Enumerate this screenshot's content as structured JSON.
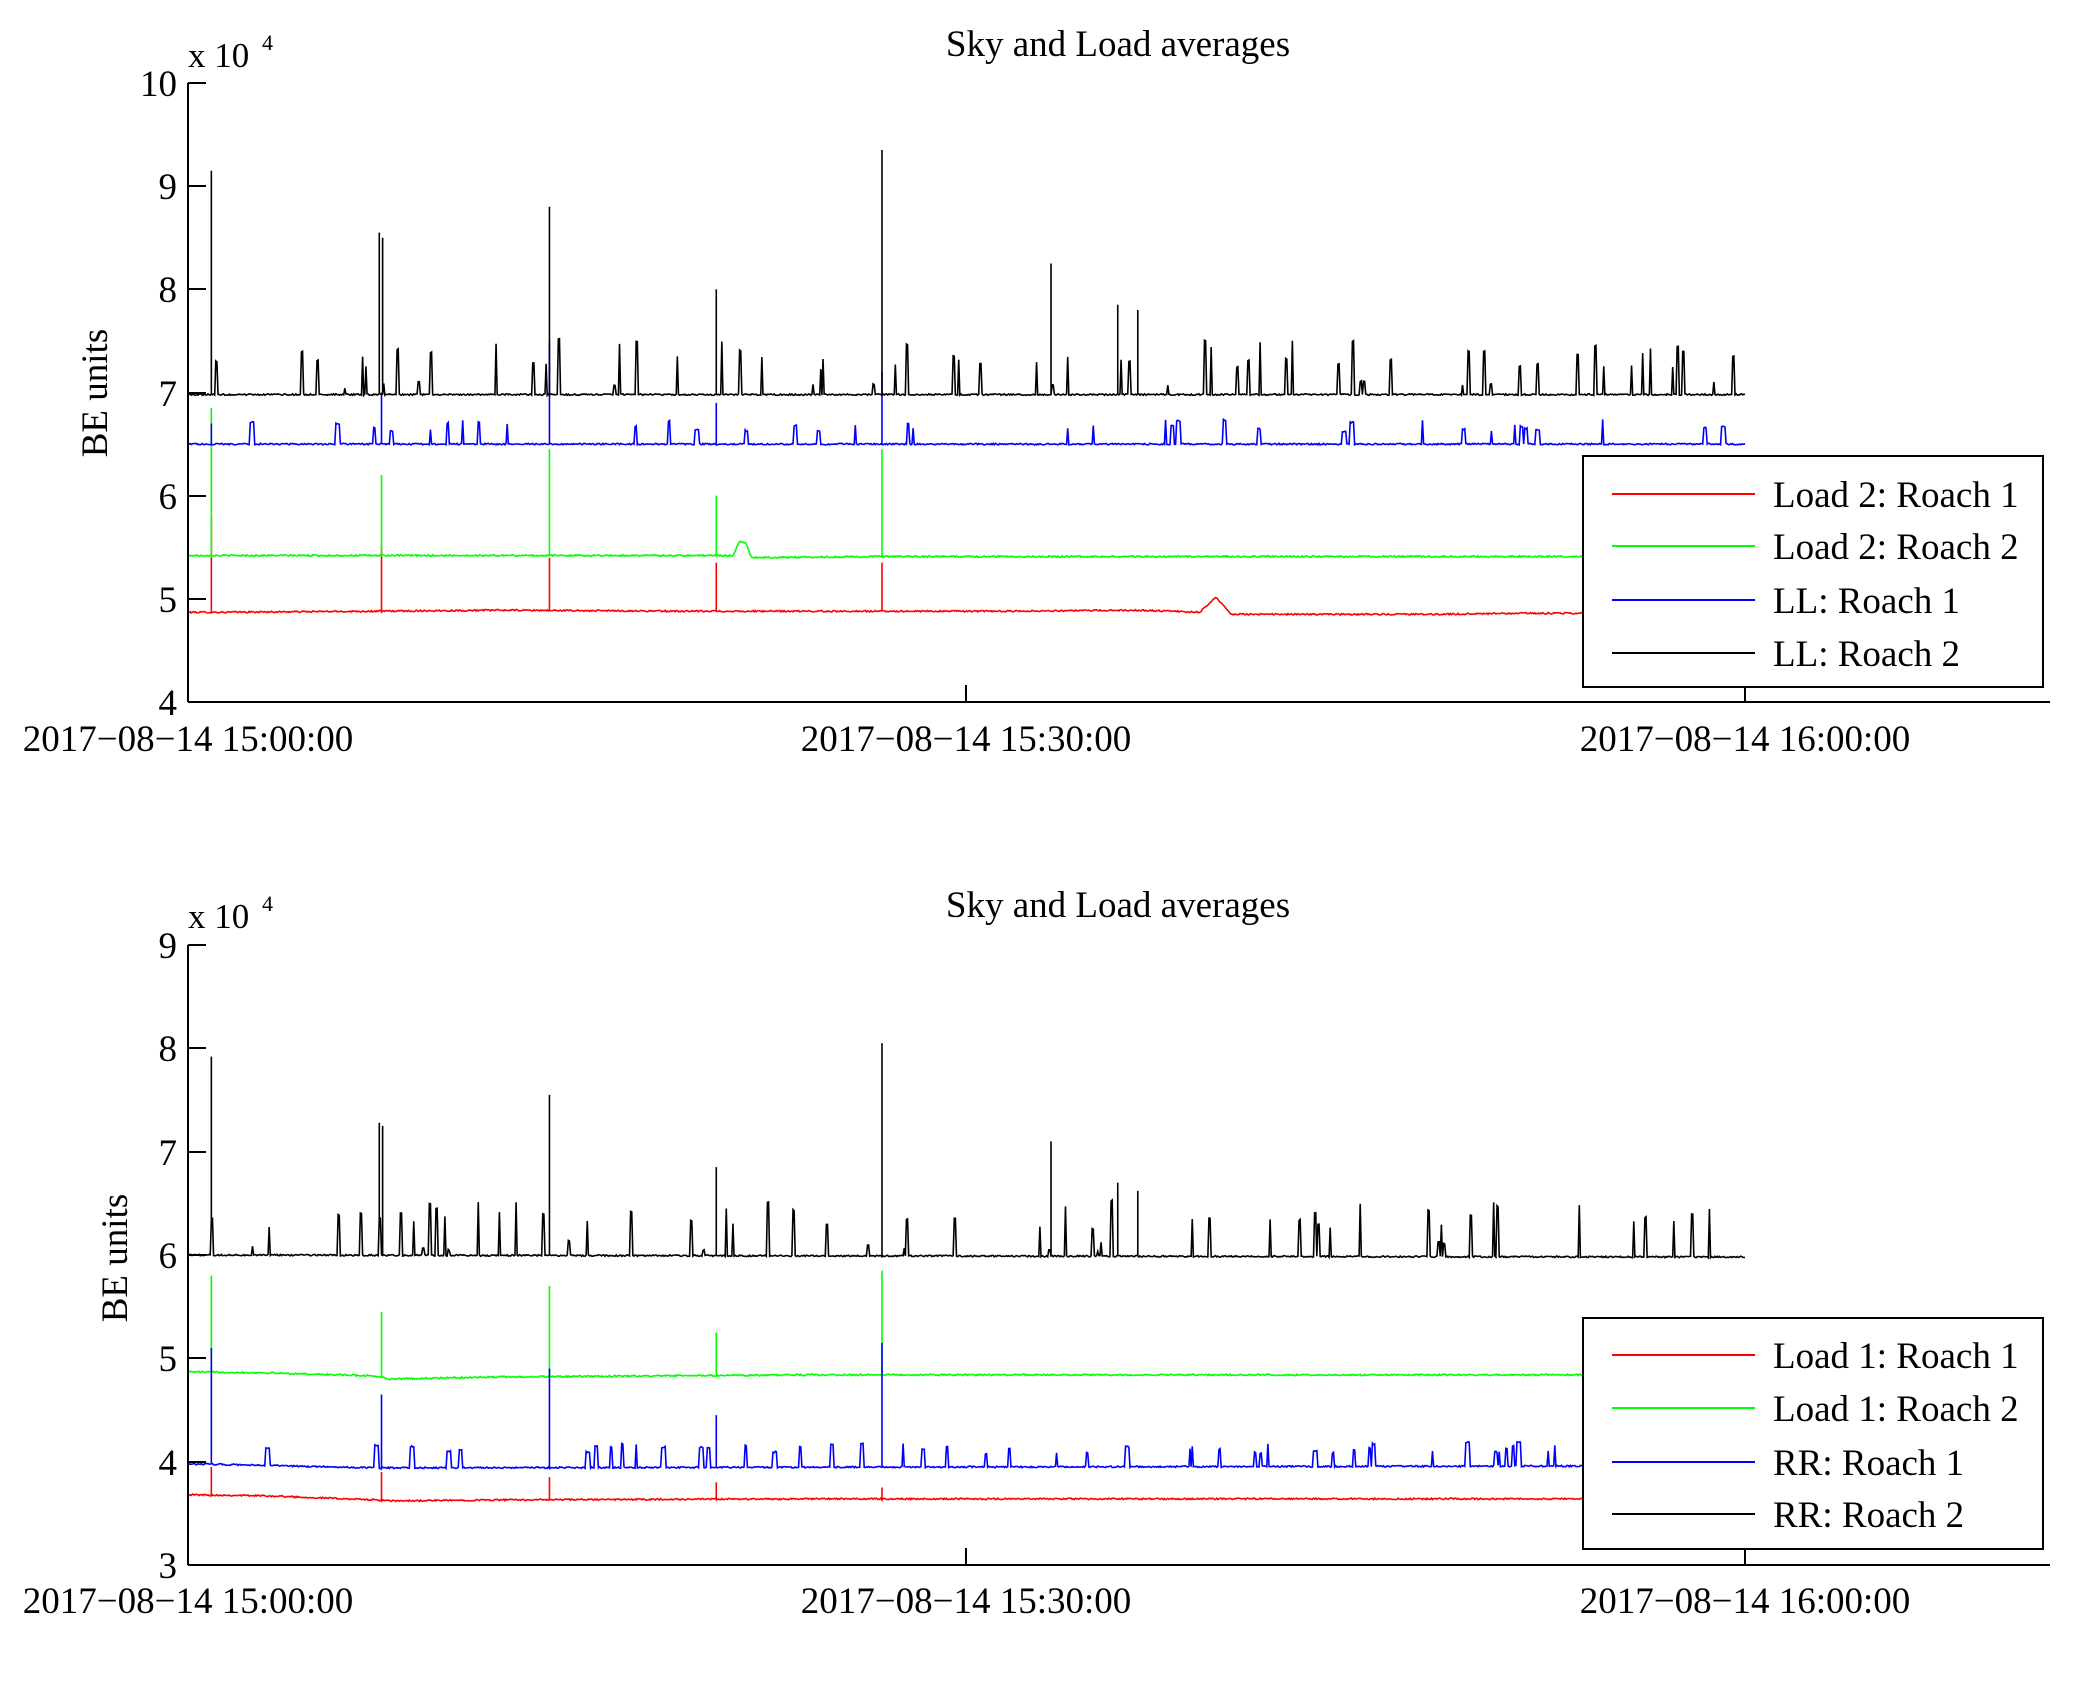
{
  "chart_data": [
    {
      "type": "line",
      "title": "Sky and Load averages",
      "ylabel": "BE units",
      "y_multiplier": "x 10",
      "y_multiplier_exponent": "4",
      "xlim": [
        "2017-08-14 14:58:00",
        "2017-08-14 16:10:00"
      ],
      "ylim": [
        4,
        10
      ],
      "yticks": [
        "4",
        "5",
        "6",
        "7",
        "8",
        "9",
        "10"
      ],
      "xticks": [
        "2017−08−14 15:00:00",
        "2017−08−14 15:30:00",
        "2017−08−14 16:00:00"
      ],
      "grid": false,
      "legend_position": "right",
      "series": [
        {
          "name": "Load 2: Roach 1",
          "color": "#ff0000",
          "base": [
            [
              0,
              4.87
            ],
            [
              2,
              4.87
            ],
            [
              12,
              4.88
            ],
            [
              20,
              4.89
            ],
            [
              32,
              4.88
            ],
            [
              42,
              4.88
            ],
            [
              52,
              4.88
            ],
            [
              61,
              4.89
            ],
            [
              65,
              4.87
            ],
            [
              66,
              5.02
            ],
            [
              67,
              4.85
            ],
            [
              80,
              4.85
            ],
            [
              86,
              4.86
            ],
            [
              100,
              4.86
            ]
          ],
          "spikes": [
            [
              1.5,
              5.8
            ],
            [
              12.4,
              5.5
            ],
            [
              23.2,
              5.4
            ],
            [
              33.9,
              5.35
            ],
            [
              44.6,
              5.35
            ]
          ]
        },
        {
          "name": "Load 2: Roach 2",
          "color": "#00ff00",
          "base": [
            [
              0,
              5.42
            ],
            [
              2,
              5.42
            ],
            [
              12,
              5.42
            ],
            [
              23,
              5.42
            ],
            [
              32,
              5.42
            ],
            [
              34,
              5.42
            ],
            [
              35,
              5.42
            ],
            [
              35.4,
              5.55
            ],
            [
              35.8,
              5.55
            ],
            [
              36.2,
              5.4
            ],
            [
              45,
              5.41
            ],
            [
              55,
              5.41
            ],
            [
              100,
              5.41
            ]
          ],
          "spikes": [
            [
              1.5,
              6.85
            ],
            [
              12.4,
              6.2
            ],
            [
              23.2,
              6.45
            ],
            [
              33.9,
              6.0
            ],
            [
              44.6,
              6.45
            ]
          ]
        },
        {
          "name": "LL: Roach 1",
          "color": "#0000ff",
          "base": [
            [
              0,
              6.5
            ],
            [
              100,
              6.5
            ]
          ],
          "spikes": [
            [
              1.5,
              6.7
            ],
            [
              12.4,
              7.0
            ],
            [
              23.2,
              7.5
            ],
            [
              33.9,
              6.9
            ],
            [
              44.6,
              7.2
            ]
          ]
        },
        {
          "name": "LL: Roach 2",
          "color": "#000000",
          "base": [
            [
              0,
              6.98
            ],
            [
              100,
              6.98
            ]
          ],
          "spikes": [
            [
              1.5,
              9.15
            ],
            [
              12.3,
              8.55
            ],
            [
              12.5,
              8.5
            ],
            [
              23.2,
              8.8
            ],
            [
              33.9,
              8.0
            ],
            [
              44.6,
              9.35
            ],
            [
              55.4,
              8.25
            ],
            [
              59.7,
              7.85
            ],
            [
              61.0,
              7.8
            ]
          ]
        }
      ]
    },
    {
      "type": "line",
      "title": "Sky and Load averages",
      "ylabel": "BE units",
      "y_multiplier": "x 10",
      "y_multiplier_exponent": "4",
      "xlim": [
        "2017-08-14 14:58:00",
        "2017-08-14 16:10:00"
      ],
      "ylim": [
        3,
        9
      ],
      "yticks": [
        "3",
        "4",
        "5",
        "6",
        "7",
        "8",
        "9"
      ],
      "xticks": [
        "2017−08−14 15:00:00",
        "2017−08−14 15:30:00",
        "2017−08−14 16:00:00"
      ],
      "grid": false,
      "legend_position": "right",
      "series": [
        {
          "name": "Load 1: Roach 1",
          "color": "#ff0000",
          "base": [
            [
              0,
              3.68
            ],
            [
              5,
              3.67
            ],
            [
              12,
              3.63
            ],
            [
              13,
              3.62
            ],
            [
              20,
              3.63
            ],
            [
              40,
              3.64
            ],
            [
              100,
              3.64
            ]
          ],
          "spikes": [
            [
              1.5,
              3.95
            ],
            [
              12.4,
              3.9
            ],
            [
              23.2,
              3.85
            ],
            [
              33.9,
              3.8
            ],
            [
              44.6,
              3.75
            ]
          ]
        },
        {
          "name": "Load 1: Roach 2",
          "color": "#00ff00",
          "base": [
            [
              0,
              4.87
            ],
            [
              5,
              4.86
            ],
            [
              12,
              4.83
            ],
            [
              13,
              4.8
            ],
            [
              20,
              4.82
            ],
            [
              40,
              4.84
            ],
            [
              100,
              4.84
            ]
          ],
          "spikes": [
            [
              1.5,
              5.8
            ],
            [
              12.4,
              5.45
            ],
            [
              23.2,
              5.7
            ],
            [
              33.9,
              5.25
            ],
            [
              44.6,
              5.85
            ]
          ]
        },
        {
          "name": "RR: Roach 1",
          "color": "#0000ff",
          "base": [
            [
              0,
              3.98
            ],
            [
              12,
              3.94
            ],
            [
              100,
              3.96
            ]
          ],
          "spikes": [
            [
              1.5,
              5.1
            ],
            [
              12.4,
              4.65
            ],
            [
              23.2,
              4.9
            ],
            [
              33.9,
              4.45
            ],
            [
              44.6,
              5.15
            ]
          ]
        },
        {
          "name": "RR: Roach 2",
          "color": "#000000",
          "base": [
            [
              0,
              6.0
            ],
            [
              100,
              5.98
            ]
          ],
          "spikes": [
            [
              1.5,
              7.92
            ],
            [
              12.3,
              7.28
            ],
            [
              12.5,
              7.25
            ],
            [
              23.2,
              7.55
            ],
            [
              33.9,
              6.85
            ],
            [
              44.6,
              8.05
            ],
            [
              55.4,
              7.1
            ],
            [
              59.7,
              6.7
            ],
            [
              61.0,
              6.62
            ]
          ]
        }
      ]
    }
  ]
}
